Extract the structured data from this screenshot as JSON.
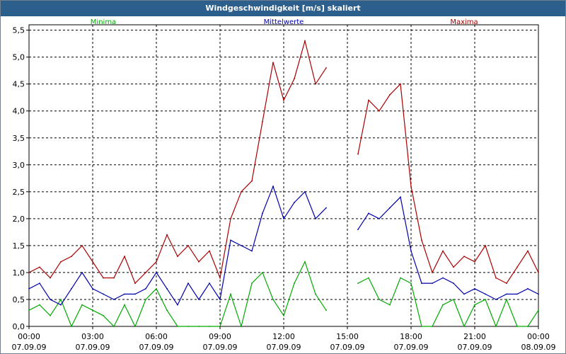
{
  "window": {
    "title": "Windgeschwindigkeit [m/s] skaliert"
  },
  "chart_data": {
    "type": "line",
    "title": "Windgeschwindigkeit [m/s] skaliert",
    "xlabel": "",
    "ylabel": "",
    "ylim": [
      0,
      5.6
    ],
    "x_range_hours": [
      0,
      24
    ],
    "grid": true,
    "legend_placement": "top",
    "y_ticks": [
      "0,0",
      "0,5",
      "1,0",
      "1,5",
      "2,0",
      "2,5",
      "3,0",
      "3,5",
      "4,0",
      "4,5",
      "5,0",
      "5,5"
    ],
    "x_ticks": [
      {
        "time": "00:00",
        "date": "07.09.09"
      },
      {
        "time": "03:00",
        "date": "07.09.09"
      },
      {
        "time": "06:00",
        "date": "07.09.09"
      },
      {
        "time": "09:00",
        "date": "07.09.09"
      },
      {
        "time": "12:00",
        "date": "07.09.09"
      },
      {
        "time": "15:00",
        "date": "07.09.09"
      },
      {
        "time": "18:00",
        "date": "07.09.09"
      },
      {
        "time": "21:00",
        "date": "07.09.09"
      },
      {
        "time": "00:00",
        "date": "08.09.09"
      }
    ],
    "x_hours": [
      0,
      0.5,
      1,
      1.5,
      2,
      2.5,
      3,
      3.5,
      4,
      4.5,
      5,
      5.5,
      6,
      6.5,
      7,
      7.5,
      8,
      8.5,
      9,
      9.5,
      10,
      10.5,
      11,
      11.5,
      12,
      12.5,
      13,
      13.5,
      14,
      14.5,
      15,
      15.5,
      16,
      16.5,
      17,
      17.5,
      18,
      18.5,
      19,
      19.5,
      20,
      20.5,
      21,
      21.5,
      22,
      22.5,
      23,
      23.5,
      24
    ],
    "series": [
      {
        "name": "Minima",
        "color": "#00aa00",
        "values": [
          0.3,
          0.4,
          0.2,
          0.5,
          0.0,
          0.4,
          0.3,
          0.2,
          0.0,
          0.4,
          0.0,
          0.5,
          0.7,
          0.3,
          0.0,
          0.0,
          0.0,
          0.0,
          0.0,
          0.6,
          0.0,
          0.8,
          1.0,
          0.5,
          0.2,
          0.8,
          1.2,
          0.6,
          0.3,
          null,
          null,
          0.8,
          0.9,
          0.5,
          0.4,
          0.9,
          0.8,
          0.0,
          0.0,
          0.4,
          0.5,
          0.0,
          0.4,
          0.5,
          0.0,
          0.5,
          0.0,
          0.0,
          0.3
        ]
      },
      {
        "name": "Mittelwerte",
        "color": "#0000aa",
        "values": [
          0.7,
          0.8,
          0.5,
          0.4,
          0.7,
          1.0,
          0.7,
          0.6,
          0.5,
          0.6,
          0.6,
          0.7,
          1.0,
          0.7,
          0.4,
          0.8,
          0.5,
          0.8,
          0.5,
          1.6,
          1.5,
          1.4,
          2.1,
          2.6,
          2.0,
          2.3,
          2.5,
          2.0,
          2.2,
          null,
          null,
          1.8,
          2.1,
          2.0,
          2.2,
          2.4,
          1.4,
          0.8,
          0.8,
          0.9,
          0.8,
          0.6,
          0.7,
          0.6,
          0.5,
          0.6,
          0.6,
          0.7,
          0.6
        ]
      },
      {
        "name": "Maxima",
        "color": "#aa0000",
        "values": [
          1.0,
          1.1,
          0.9,
          1.2,
          1.3,
          1.5,
          1.2,
          0.9,
          0.9,
          1.3,
          0.8,
          1.0,
          1.2,
          1.7,
          1.3,
          1.5,
          1.2,
          1.4,
          0.9,
          2.0,
          2.5,
          2.7,
          3.8,
          4.9,
          4.2,
          4.6,
          5.3,
          4.5,
          4.8,
          null,
          null,
          3.2,
          4.2,
          4.0,
          4.3,
          4.5,
          2.6,
          1.6,
          1.0,
          1.4,
          1.1,
          1.3,
          1.2,
          1.5,
          0.9,
          0.8,
          1.1,
          1.4,
          1.0
        ]
      }
    ]
  }
}
